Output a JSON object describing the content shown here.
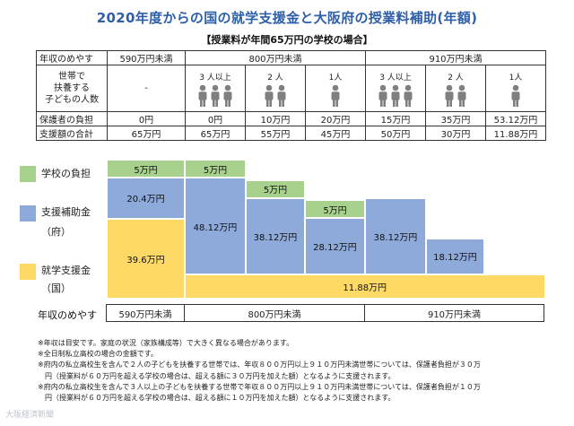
{
  "title": "2020年度からの国の就学支援金と大阪府の授業料補助(年額)",
  "subtitle": "【授業料が年間65万円の学校の場合】",
  "table": {
    "row_income_label": "年収のめやす",
    "row_kids_label": [
      "世帯で",
      "扶養する",
      "子どもの人数"
    ],
    "row_guardian_label": "保護者の負担",
    "row_total_label": "支援額の合計",
    "bands": [
      "590万円未満",
      "800万円未満",
      "910万円未満"
    ],
    "col590_kids": "-",
    "columns": [
      {
        "kids": "3 人以上",
        "people": 3,
        "guardian": "0円",
        "total": "65万円"
      },
      {
        "kids": "2 人",
        "people": 2,
        "guardian": "10万円",
        "total": "55万円"
      },
      {
        "kids": "1人",
        "people": 1,
        "guardian": "20万円",
        "total": "45万円"
      },
      {
        "kids": "3 人以上",
        "people": 3,
        "guardian": "15万円",
        "total": "50万円"
      },
      {
        "kids": "2 人",
        "people": 2,
        "guardian": "35万円",
        "total": "30万円"
      },
      {
        "kids": "1人",
        "people": 1,
        "guardian": "53.12万円",
        "total": "11.88万円"
      }
    ],
    "col590": {
      "guardian": "0円",
      "total": "65万円"
    }
  },
  "legend": {
    "school": "学校の負担",
    "prefecture": [
      "支援補助金",
      "（府）"
    ],
    "national": [
      "就学支援金",
      "（国）"
    ]
  },
  "colors": {
    "school": "#a9d18e",
    "prefecture": "#8eaadb",
    "national": "#ffd966"
  },
  "chart_data": {
    "type": "bar",
    "stacked": true,
    "unit": "万円",
    "columns": [
      "590万円未満",
      "800万円未満・3人以上",
      "800万円未満・2人",
      "800万円未満・1人",
      "910万円未満・3人以上",
      "910万円未満・2人",
      "910万円未満・1人"
    ],
    "series": [
      {
        "name": "学校の負担",
        "values": [
          5,
          5,
          5,
          5,
          0,
          0,
          0
        ]
      },
      {
        "name": "支援補助金（府）",
        "values": [
          20.4,
          48.12,
          38.12,
          28.12,
          38.12,
          18.12,
          0
        ]
      },
      {
        "name": "就学支援金（国）",
        "values": [
          39.6,
          11.88,
          11.88,
          11.88,
          11.88,
          11.88,
          11.88
        ]
      }
    ],
    "labels": {
      "school": "5万円",
      "pref": [
        "20.4万円",
        "48.12万円",
        "38.12万円",
        "28.12万円",
        "38.12万円",
        "18.12万円"
      ],
      "national_590": "39.6万円",
      "national_other": "11.88万円"
    }
  },
  "bottom": {
    "label": "年収のめやす",
    "bands": [
      "590万円未満",
      "800万円未満",
      "910万円未満"
    ]
  },
  "notes": [
    "※年収は目安です。家庭の状況（家族構成等）で大きく異なる場合があります。",
    "※全日制私立高校の場合の金額です。",
    "※府内の私立高校生を含んで２人の子どもを扶養する世帯では、年収８００万円以上９１０万円未満世帯については、保護者負担が３０万",
    "　円（授業料が６０万円を超える学校の場合は、超える額に３０万円を加えた額）となるように支援されます。",
    "※府内の私立高校生を含んで３人以上の子どもを扶養する世帯で年収８００万円以上９１０万円未満世帯については、保護者負担が１０万",
    "　円（授業料が６０万円を超える学校の場合は、超える額に１０万円を加えた額）となるように支援されます。"
  ],
  "watermark": "大阪経済新聞"
}
